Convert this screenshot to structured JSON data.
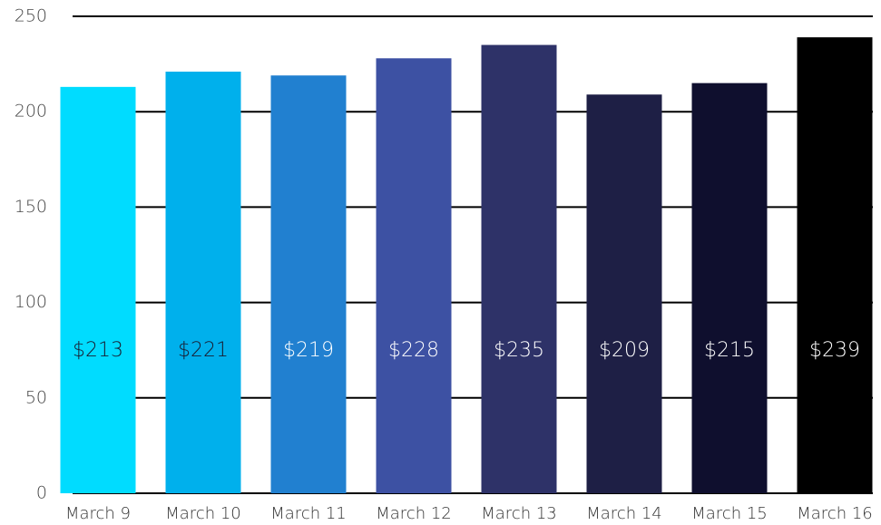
{
  "chart_data": {
    "type": "bar",
    "categories": [
      "March 9",
      "March 10",
      "March 11",
      "March 12",
      "March 13",
      "March 14",
      "March 15",
      "March 16"
    ],
    "values": [
      213,
      221,
      219,
      228,
      235,
      209,
      215,
      239
    ],
    "value_labels": [
      "$213",
      "$221",
      "$219",
      "$228",
      "$235",
      "$209",
      "$215",
      "$239"
    ],
    "colors": [
      "#00dcff",
      "#00b0ec",
      "#2180d0",
      "#3d51a3",
      "#2e3268",
      "#1e1f45",
      "#0f0f2e",
      "#000000"
    ],
    "ylim": [
      0,
      250
    ],
    "yticks": [
      0,
      50,
      100,
      150,
      200,
      250
    ],
    "grid": true
  }
}
